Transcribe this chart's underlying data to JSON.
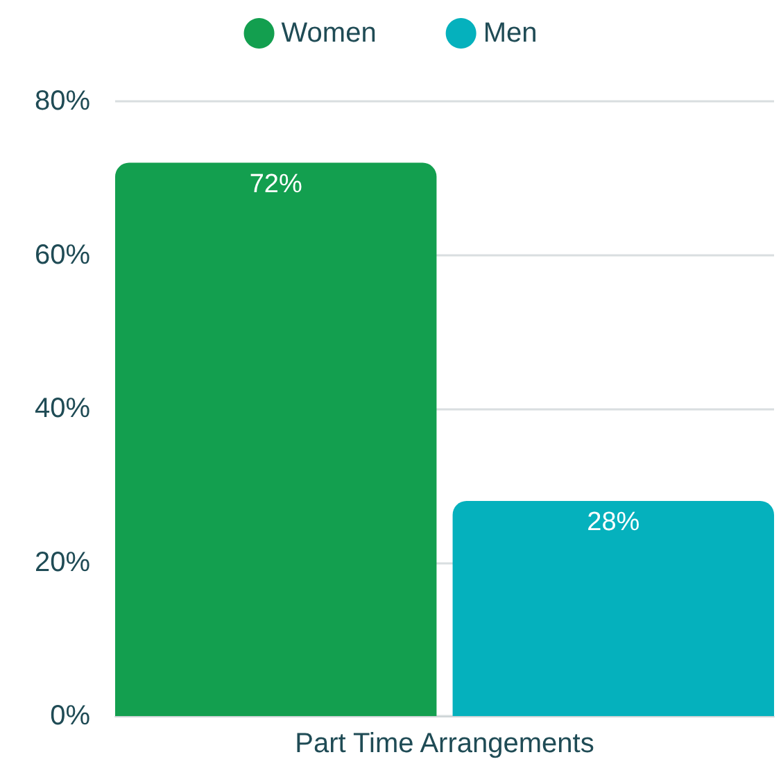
{
  "chart_data": {
    "type": "bar",
    "categories": [
      "Part Time Arrangements"
    ],
    "series": [
      {
        "name": "Women",
        "color": "#139f4f",
        "values": [
          72
        ],
        "value_labels": [
          "72%"
        ]
      },
      {
        "name": "Men",
        "color": "#05b1bd",
        "values": [
          28
        ],
        "value_labels": [
          "28%"
        ]
      }
    ],
    "ylim": [
      0,
      80
    ],
    "yticks": [
      {
        "value": 0,
        "label": "0%"
      },
      {
        "value": 20,
        "label": "20%"
      },
      {
        "value": 40,
        "label": "40%"
      },
      {
        "value": 60,
        "label": "60%"
      },
      {
        "value": 80,
        "label": "80%"
      }
    ],
    "grid": "y",
    "legend": "top"
  }
}
